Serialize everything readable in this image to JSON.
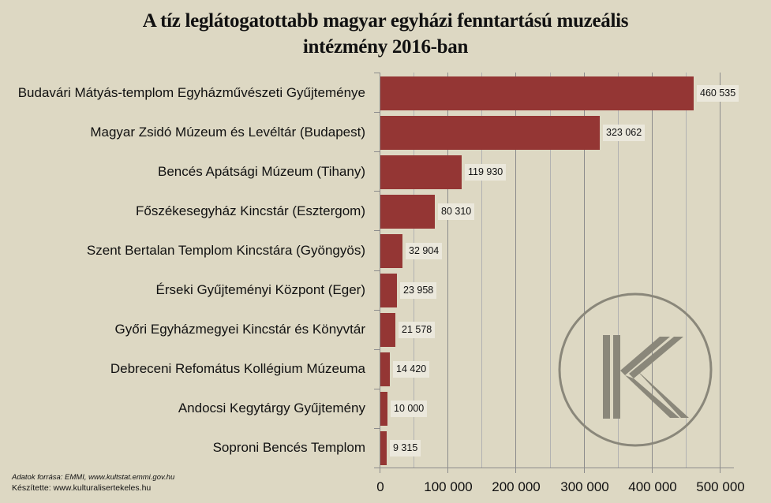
{
  "title": {
    "line1": "A tíz leglátogatottabb magyar egyházi fenntartású muzeális",
    "line2": "intézmény 2016-ban"
  },
  "footer": {
    "source": "Adatok forrása: EMMI, www.kultstat.emmi.gov.hu",
    "author": "Készítette: www.kulturalisertekeles.hu"
  },
  "logo": {
    "icon": "k-circle-logo-icon",
    "letter": "K"
  },
  "colors": {
    "background": "#ddd8c3",
    "bar": "#943634",
    "label_box": "#ebe8dc",
    "logo": "#8a877a"
  },
  "chart_data": {
    "type": "bar",
    "orientation": "horizontal",
    "title": "A tíz leglátogatottabb magyar egyházi fenntartású muzeális intézmény 2016-ban",
    "xlabel": "",
    "ylabel": "",
    "xlim": [
      0,
      520000
    ],
    "x_ticks": [
      0,
      100000,
      200000,
      300000,
      400000,
      500000
    ],
    "x_tick_labels": [
      "0",
      "100 000",
      "200 000",
      "300 000",
      "400 000",
      "500 000"
    ],
    "grid": "vertical major every 100000, minor every 50000",
    "legend": "none",
    "categories": [
      "Budavári Mátyás-templom Egyházművészeti Gyűjteménye",
      "Magyar Zsidó Múzeum és Levéltár (Budapest)",
      "Bencés Apátsági Múzeum (Tihany)",
      "Főszékesegyház Kincstár (Esztergom)",
      "Szent Bertalan Templom Kincstára (Gyöngyös)",
      "Érseki Gyűjteményi Központ (Eger)",
      "Győri Egyházmegyei Kincstár és Könyvtár",
      "Debreceni Refomátus Kollégium Múzeuma",
      "Andocsi Kegytárgy Gyűjtemény",
      "Soproni Bencés Templom"
    ],
    "values": [
      460535,
      323062,
      119930,
      80310,
      32904,
      23958,
      21578,
      14420,
      10000,
      9315
    ],
    "value_labels": [
      "460 535",
      "323 062",
      "119 930",
      "80 310",
      "32 904",
      "23 958",
      "21 578",
      "14 420",
      "10 000",
      "9 315"
    ]
  }
}
